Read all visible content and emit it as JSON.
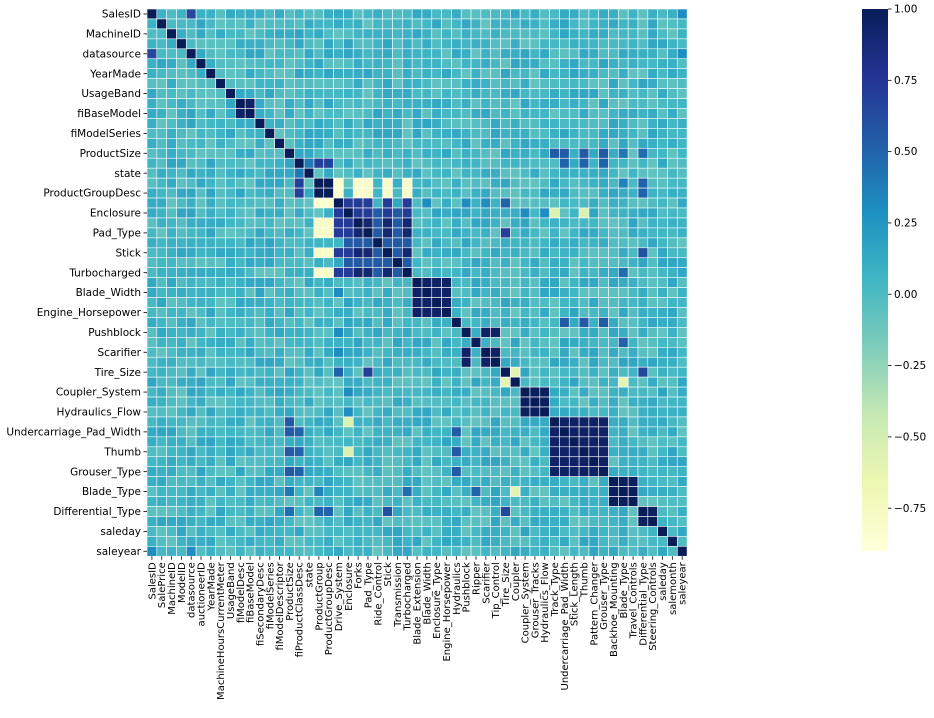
{
  "chart_data": {
    "type": "heatmap",
    "title": "",
    "xlabel": "",
    "ylabel": "",
    "colormap": "YlGnBu",
    "colors": {
      "cell_border": "#ffffff",
      "stops": [
        "#ffffd9",
        "#edf8b1",
        "#c7e9b4",
        "#7fcdbb",
        "#41b6c4",
        "#1d91c0",
        "#225ea8",
        "#253494",
        "#081d58"
      ]
    },
    "value_range": [
      -0.9,
      1.0
    ],
    "colorbar_ticks": [
      1.0,
      0.75,
      0.5,
      0.25,
      0.0,
      -0.25,
      -0.5,
      -0.75
    ],
    "colorbar_tick_labels": [
      "1.00",
      "0.75",
      "0.50",
      "0.25",
      "0.00",
      "−0.25",
      "−0.50",
      "−0.75"
    ],
    "x_categories": [
      "SalesID",
      "SalePrice",
      "MachineID",
      "ModelID",
      "datasource",
      "auctioneerID",
      "YearMade",
      "MachineHoursCurrentMeter",
      "UsageBand",
      "fiModelDesc",
      "fiBaseModel",
      "fiSecondaryDesc",
      "fiModelSeries",
      "fiModelDescriptor",
      "ProductSize",
      "fiProductClassDesc",
      "state",
      "ProductGroup",
      "ProductGroupDesc",
      "Drive_System",
      "Enclosure",
      "Forks",
      "Pad_Type",
      "Ride_Control",
      "Stick",
      "Transmission",
      "Turbocharged",
      "Blade_Extension",
      "Blade_Width",
      "Enclosure_Type",
      "Engine_Horsepower",
      "Hydraulics",
      "Pushblock",
      "Ripper",
      "Scarifier",
      "Tip_Control",
      "Tire_Size",
      "Coupler",
      "Coupler_System",
      "Grouser_Tracks",
      "Hydraulics_Flow",
      "Track_Type",
      "Undercarriage_Pad_Width",
      "Stick_Length",
      "Thumb",
      "Pattern_Changer",
      "Grouser_Type",
      "Backhoe_Mounting",
      "Blade_Type",
      "Travel_Controls",
      "Differential_Type",
      "Steering_Controls",
      "saleday",
      "salemonth",
      "saleyear"
    ],
    "y_tick_labels": [
      "SalesID",
      "MachineID",
      "datasource",
      "YearMade",
      "UsageBand",
      "fiBaseModel",
      "fiModelSeries",
      "ProductSize",
      "state",
      "ProductGroupDesc",
      "Enclosure",
      "Pad_Type",
      "Stick",
      "Turbocharged",
      "Blade_Width",
      "Engine_Horsepower",
      "Pushblock",
      "Scarifier",
      "Tire_Size",
      "Coupler_System",
      "Hydraulics_Flow",
      "Undercarriage_Pad_Width",
      "Thumb",
      "Grouser_Type",
      "Blade_Type",
      "Differential_Type",
      "saleday",
      "saleyear"
    ],
    "blocks": [
      {
        "members": [
          "fiModelDesc",
          "fiBaseModel"
        ],
        "value": 0.95
      },
      {
        "members": [
          "ProductGroup",
          "ProductGroupDesc"
        ],
        "value": 1.0
      },
      {
        "members": [
          "Blade_Extension",
          "Blade_Width",
          "Enclosure_Type",
          "Engine_Horsepower"
        ],
        "value": 0.95
      },
      {
        "members": [
          "Pushblock",
          "Scarifier",
          "Tip_Control"
        ],
        "value": 0.95
      },
      {
        "members": [
          "Coupler_System",
          "Grouser_Tracks",
          "Hydraulics_Flow"
        ],
        "value": 0.98
      },
      {
        "members": [
          "Track_Type",
          "Undercarriage_Pad_Width",
          "Stick_Length",
          "Thumb",
          "Pattern_Changer",
          "Grouser_Type"
        ],
        "value": 0.95
      },
      {
        "members": [
          "Backhoe_Mounting",
          "Blade_Type",
          "Travel_Controls"
        ],
        "value": 0.98
      },
      {
        "members": [
          "Differential_Type",
          "Steering_Controls"
        ],
        "value": 0.97
      },
      {
        "members": [
          "Enclosure",
          "Forks",
          "Pad_Type",
          "Ride_Control",
          "Stick",
          "Transmission",
          "Turbocharged"
        ],
        "value": 0.55
      },
      {
        "members": [
          "Drive_System",
          "Enclosure",
          "Forks",
          "Pad_Type",
          "Stick",
          "Turbocharged"
        ],
        "value": 0.72
      },
      {
        "members": [
          "Forks",
          "Pad_Type",
          "Stick",
          "Turbocharged"
        ],
        "value": 0.9
      }
    ],
    "pairs": [
      {
        "a": "SalesID",
        "b": "datasource",
        "value": 0.65
      },
      {
        "a": "SalesID",
        "b": "saleyear",
        "value": 0.3
      },
      {
        "a": "datasource",
        "b": "saleyear",
        "value": 0.3
      },
      {
        "a": "fiProductClassDesc",
        "b": "ProductGroup",
        "value": 0.7
      },
      {
        "a": "fiProductClassDesc",
        "b": "ProductGroupDesc",
        "value": 0.7
      },
      {
        "a": "fiProductClassDesc",
        "b": "state",
        "value": 0.4
      },
      {
        "a": "ProductSize",
        "b": "Track_Type",
        "value": 0.55
      },
      {
        "a": "ProductSize",
        "b": "Undercarriage_Pad_Width",
        "value": 0.55
      },
      {
        "a": "ProductSize",
        "b": "Thumb",
        "value": 0.55
      },
      {
        "a": "ProductSize",
        "b": "Grouser_Type",
        "value": 0.55
      },
      {
        "a": "ProductSize",
        "b": "Blade_Type",
        "value": 0.4
      },
      {
        "a": "ProductSize",
        "b": "Differential_Type",
        "value": 0.45
      },
      {
        "a": "fiProductClassDesc",
        "b": "Undercarriage_Pad_Width",
        "value": 0.5
      },
      {
        "a": "fiProductClassDesc",
        "b": "Thumb",
        "value": 0.5
      },
      {
        "a": "fiProductClassDesc",
        "b": "Grouser_Type",
        "value": 0.5
      },
      {
        "a": "ProductGroup",
        "b": "Blade_Type",
        "value": 0.35
      },
      {
        "a": "ProductGroup",
        "b": "Differential_Type",
        "value": 0.5
      },
      {
        "a": "ProductGroupDesc",
        "b": "Differential_Type",
        "value": 0.5
      },
      {
        "a": "ProductGroup",
        "b": "Drive_System",
        "value": -0.85
      },
      {
        "a": "ProductGroupDesc",
        "b": "Drive_System",
        "value": -0.85
      },
      {
        "a": "ProductGroup",
        "b": "Forks",
        "value": -0.8
      },
      {
        "a": "ProductGroup",
        "b": "Pad_Type",
        "value": -0.8
      },
      {
        "a": "ProductGroup",
        "b": "Stick",
        "value": -0.8
      },
      {
        "a": "ProductGroup",
        "b": "Turbocharged",
        "value": -0.8
      },
      {
        "a": "ProductGroupDesc",
        "b": "Forks",
        "value": -0.8
      },
      {
        "a": "ProductGroupDesc",
        "b": "Pad_Type",
        "value": -0.8
      },
      {
        "a": "ProductGroupDesc",
        "b": "Stick",
        "value": -0.8
      },
      {
        "a": "ProductGroupDesc",
        "b": "Turbocharged",
        "value": -0.8
      },
      {
        "a": "Enclosure",
        "b": "Coupler_System",
        "value": 0.3
      },
      {
        "a": "Enclosure",
        "b": "Hydraulics_Flow",
        "value": 0.3
      },
      {
        "a": "Enclosure",
        "b": "Track_Type",
        "value": -0.55
      },
      {
        "a": "Enclosure",
        "b": "Thumb",
        "value": -0.55
      },
      {
        "a": "Stick",
        "b": "Differential_Type",
        "value": 0.6
      },
      {
        "a": "Turbocharged",
        "b": "Blade_Type",
        "value": 0.45
      },
      {
        "a": "Pad_Type",
        "b": "Tire_Size",
        "value": 0.7
      },
      {
        "a": "Tire_Size",
        "b": "Differential_Type",
        "value": 0.65
      },
      {
        "a": "Coupler",
        "b": "Tire_Size",
        "value": -0.6
      },
      {
        "a": "Coupler",
        "b": "Blade_Type",
        "value": -0.6
      },
      {
        "a": "Hydraulics",
        "b": "Undercarriage_Pad_Width",
        "value": 0.55
      },
      {
        "a": "Hydraulics",
        "b": "Thumb",
        "value": 0.55
      },
      {
        "a": "Hydraulics",
        "b": "Grouser_Type",
        "value": 0.55
      },
      {
        "a": "Ripper",
        "b": "Blade_Type",
        "value": 0.5
      },
      {
        "a": "Drive_System",
        "b": "Blade_Width",
        "value": 0.3
      },
      {
        "a": "Drive_System",
        "b": "Scarifier",
        "value": 0.3
      },
      {
        "a": "Drive_System",
        "b": "Pushblock",
        "value": 0.3
      },
      {
        "a": "Drive_System",
        "b": "Tire_Size",
        "value": 0.5
      }
    ]
  }
}
